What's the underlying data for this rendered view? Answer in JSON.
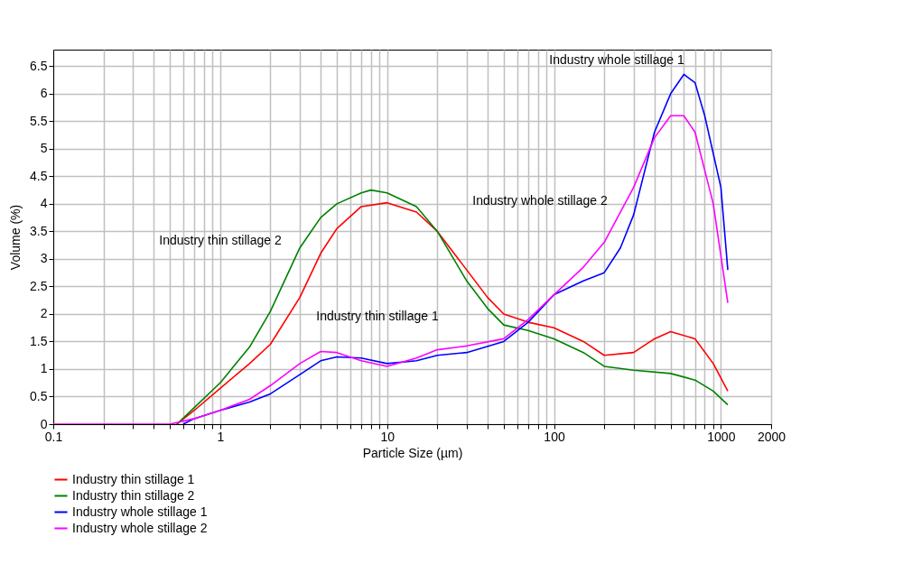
{
  "chart_data": {
    "type": "line",
    "xlabel": "Particle Size (µm)",
    "ylabel": "Volume (%)",
    "log": "x",
    "grid": true,
    "legend": "bottom",
    "line_style": "solid",
    "marker": "none",
    "xlim": [
      0.1,
      2000
    ],
    "ylim": [
      0,
      6.8
    ],
    "xticks": [
      0.1,
      {
        "value": 0.2,
        "label": null
      },
      {
        "value": 0.3,
        "label": null
      },
      {
        "value": 0.4,
        "label": null
      },
      {
        "value": 0.5,
        "label": null
      },
      {
        "value": 0.6,
        "label": null
      },
      {
        "value": 0.7,
        "label": null
      },
      {
        "value": 0.8,
        "label": null
      },
      {
        "value": 0.9,
        "label": null
      },
      1,
      {
        "value": 2,
        "label": null
      },
      {
        "value": 3,
        "label": null
      },
      {
        "value": 4,
        "label": null
      },
      {
        "value": 5,
        "label": null
      },
      {
        "value": 6,
        "label": null
      },
      {
        "value": 7,
        "label": null
      },
      {
        "value": 8,
        "label": null
      },
      {
        "value": 9,
        "label": null
      },
      10,
      {
        "value": 20,
        "label": null
      },
      {
        "value": 30,
        "label": null
      },
      {
        "value": 40,
        "label": null
      },
      {
        "value": 50,
        "label": null
      },
      {
        "value": 60,
        "label": null
      },
      {
        "value": 70,
        "label": null
      },
      {
        "value": 80,
        "label": null
      },
      {
        "value": 90,
        "label": null
      },
      100,
      {
        "value": 200,
        "label": null
      },
      {
        "value": 300,
        "label": null
      },
      {
        "value": 400,
        "label": null
      },
      {
        "value": 500,
        "label": null
      },
      {
        "value": 600,
        "label": null
      },
      {
        "value": 700,
        "label": null
      },
      {
        "value": 800,
        "label": null
      },
      {
        "value": 900,
        "label": null
      },
      1000,
      2000
    ],
    "yticks": [
      0,
      0.5,
      1,
      1.5,
      2,
      2.5,
      3,
      3.5,
      4,
      4.5,
      5,
      5.5,
      6,
      6.5
    ],
    "series": [
      {
        "name": "Industry thin stillage 1",
        "color": "#ff0000",
        "x": [
          0.55,
          0.7,
          1,
          1.5,
          2,
          3,
          4,
          5,
          7,
          10,
          15,
          20,
          30,
          40,
          50,
          70,
          100,
          150,
          200,
          300,
          400,
          500,
          700,
          900,
          1100
        ],
        "values": [
          0,
          0.25,
          0.65,
          1.1,
          1.45,
          2.3,
          3.1,
          3.55,
          3.95,
          4.02,
          3.85,
          3.5,
          2.8,
          2.3,
          2.0,
          1.85,
          1.75,
          1.5,
          1.25,
          1.3,
          1.55,
          1.68,
          1.55,
          1.1,
          0.6
        ]
      },
      {
        "name": "Industry thin stillage 2",
        "color": "#008000",
        "x": [
          0.55,
          0.7,
          1,
          1.5,
          2,
          3,
          4,
          5,
          7,
          8,
          10,
          15,
          20,
          30,
          40,
          50,
          70,
          100,
          150,
          200,
          300,
          500,
          700,
          900,
          1100
        ],
        "values": [
          0,
          0.3,
          0.75,
          1.4,
          2.05,
          3.2,
          3.75,
          4.0,
          4.2,
          4.25,
          4.2,
          3.95,
          3.5,
          2.6,
          2.1,
          1.8,
          1.7,
          1.55,
          1.3,
          1.05,
          0.98,
          0.92,
          0.8,
          0.6,
          0.35
        ]
      },
      {
        "name": "Industry whole stillage 1",
        "color": "#0000ff",
        "x": [
          0.6,
          0.7,
          1,
          1.5,
          2,
          3,
          4,
          5,
          7,
          10,
          15,
          20,
          30,
          50,
          70,
          100,
          150,
          200,
          250,
          300,
          400,
          500,
          600,
          700,
          800,
          1000,
          1100
        ],
        "values": [
          0,
          0.1,
          0.25,
          0.4,
          0.55,
          0.9,
          1.15,
          1.22,
          1.2,
          1.1,
          1.15,
          1.25,
          1.3,
          1.5,
          1.85,
          2.35,
          2.6,
          2.75,
          3.2,
          3.8,
          5.3,
          6.0,
          6.35,
          6.2,
          5.6,
          4.3,
          2.8
        ]
      },
      {
        "name": "Industry whole stillage 2",
        "color": "#ff00ff",
        "x": [
          0.1,
          0.3,
          0.5,
          0.7,
          1,
          1.5,
          2,
          3,
          4,
          5,
          7,
          10,
          15,
          20,
          30,
          50,
          70,
          100,
          150,
          200,
          300,
          400,
          500,
          600,
          700,
          900,
          1100
        ],
        "values": [
          0,
          0,
          0,
          0.1,
          0.25,
          0.45,
          0.7,
          1.1,
          1.32,
          1.3,
          1.15,
          1.05,
          1.2,
          1.35,
          1.42,
          1.55,
          1.9,
          2.35,
          2.85,
          3.3,
          4.3,
          5.2,
          5.6,
          5.6,
          5.3,
          4.0,
          2.2
        ]
      }
    ]
  }
}
